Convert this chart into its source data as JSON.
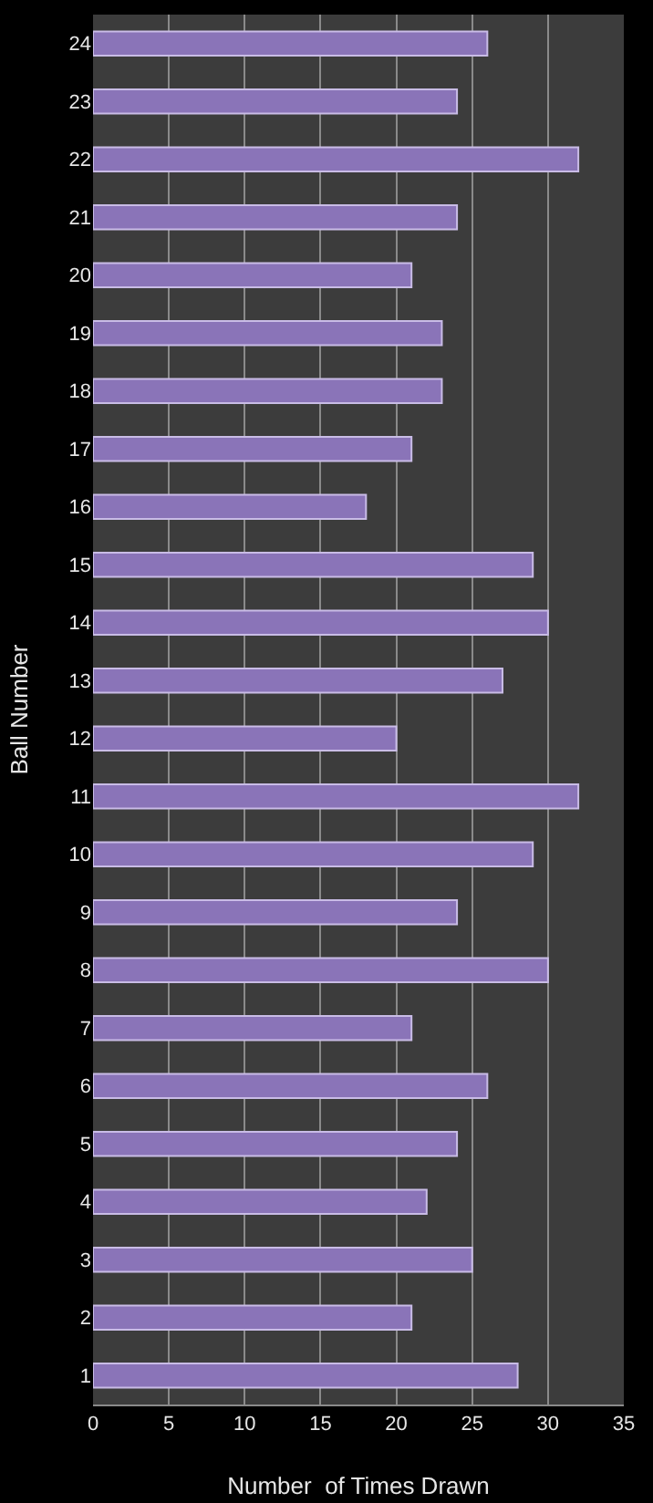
{
  "chart_data": {
    "type": "bar",
    "orientation": "horizontal",
    "xlabel": "Number  of Times Drawn",
    "ylabel": "Ball Number",
    "categories": [
      "24",
      "23",
      "22",
      "21",
      "20",
      "19",
      "18",
      "17",
      "16",
      "15",
      "14",
      "13",
      "12",
      "11",
      "10",
      "9",
      "8",
      "7",
      "6",
      "5",
      "4",
      "3",
      "2",
      "1"
    ],
    "values": [
      26,
      24,
      32,
      24,
      21,
      23,
      23,
      21,
      18,
      29,
      30,
      27,
      20,
      32,
      29,
      24,
      30,
      21,
      26,
      24,
      22,
      25,
      21,
      28
    ],
    "color": "#8a74b8",
    "xlim": [
      0,
      35
    ],
    "xticks": [
      0,
      5,
      10,
      15,
      20,
      25,
      30,
      35
    ],
    "grid": "x"
  }
}
